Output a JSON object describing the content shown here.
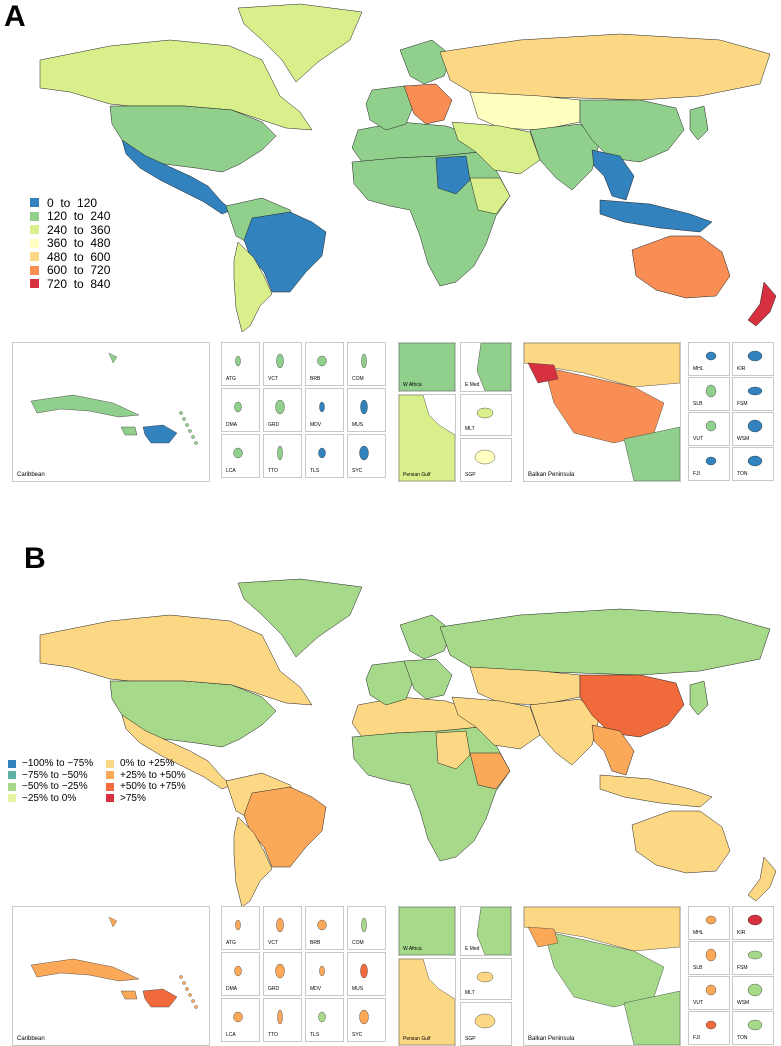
{
  "panels": [
    {
      "letter": "A",
      "legend": [
        {
          "label": "0  to  120",
          "color": "#3182bd"
        },
        {
          "label": "120  to  240",
          "color": "#91cf8c"
        },
        {
          "label": "240  to  360",
          "color": "#d9ef8b"
        },
        {
          "label": "360  to  480",
          "color": "#ffffbf"
        },
        {
          "label": "480  to  600",
          "color": "#fdd884"
        },
        {
          "label": "600  to  720",
          "color": "#f88e53"
        },
        {
          "label": "720  to  840",
          "color": "#d7303f"
        }
      ],
      "regions": {
        "north_america": "#91cf8c",
        "canada": "#d9ef8b",
        "greenland": "#d9ef8b",
        "mexico_central": "#3182bd",
        "south_america_north": "#91cf8c",
        "brazil": "#3182bd",
        "south_america_south": "#d9ef8b",
        "africa": "#91cf8c",
        "sudan": "#3182bd",
        "north_africa": "#91cf8c",
        "europe_west": "#91cf8c",
        "europe_central": "#f88e53",
        "scandinavia": "#91cf8c",
        "russia": "#fdd884",
        "central_asia": "#ffffbf",
        "middle_east": "#d9ef8b",
        "south_asia": "#91cf8c",
        "china": "#91cf8c",
        "southeast_asia": "#3182bd",
        "indonesia": "#3182bd",
        "australia": "#f88e53",
        "new_zealand": "#d7303f",
        "japan": "#91cf8c",
        "east_africa": "#d9ef8b"
      },
      "insets": {
        "caribbean": {
          "label": "Caribbean",
          "main": "#91cf8c",
          "hispaniola": "#3182bd"
        },
        "small": [
          {
            "label": "ATG",
            "color": "#91cf8c"
          },
          {
            "label": "VCT",
            "color": "#91cf8c"
          },
          {
            "label": "BRB",
            "color": "#91cf8c"
          },
          {
            "label": "COM",
            "color": "#91cf8c"
          },
          {
            "label": "DMA",
            "color": "#91cf8c"
          },
          {
            "label": "GRD",
            "color": "#91cf8c"
          },
          {
            "label": "MDV",
            "color": "#3182bd"
          },
          {
            "label": "MUS",
            "color": "#3182bd"
          },
          {
            "label": "LCA",
            "color": "#91cf8c"
          },
          {
            "label": "TTO",
            "color": "#91cf8c"
          },
          {
            "label": "TLS",
            "color": "#3182bd"
          },
          {
            "label": "SYC",
            "color": "#3182bd"
          }
        ],
        "regional": [
          {
            "label": "W Africa",
            "color": "#91cf8c"
          },
          {
            "label": "E Med",
            "color": "#91cf8c"
          },
          {
            "label": "Persian Gulf",
            "color": "#d9ef8b"
          },
          {
            "label": "MLT",
            "color": "#d9ef8b"
          },
          {
            "label": "SGP",
            "color": "#ffffbf"
          }
        ],
        "balkan": {
          "label": "Balkan Peninsula",
          "main": "#f88e53",
          "north": "#fdd884",
          "west": "#d7303f",
          "south": "#91cf8c"
        },
        "pacific": [
          {
            "label": "MHL",
            "color": "#3182bd"
          },
          {
            "label": "KIR",
            "color": "#3182bd"
          },
          {
            "label": "SLB",
            "color": "#91cf8c"
          },
          {
            "label": "FSM",
            "color": "#3182bd"
          },
          {
            "label": "VUT",
            "color": "#91cf8c"
          },
          {
            "label": "WSM",
            "color": "#3182bd"
          },
          {
            "label": "FJI",
            "color": "#3182bd"
          },
          {
            "label": "TON",
            "color": "#3182bd"
          }
        ]
      }
    },
    {
      "letter": "B",
      "legend": [
        {
          "label": "−100% to −75%",
          "color": "#3182bd"
        },
        {
          "label": "−75% to −50%",
          "color": "#5fb3a4"
        },
        {
          "label": "−50% to −25%",
          "color": "#a6d98a"
        },
        {
          "label": "−25% to 0%",
          "color": "#e6f5a0"
        },
        {
          "label": "0% to +25%",
          "color": "#fdd884"
        },
        {
          "label": "+25% to +50%",
          "color": "#fba859"
        },
        {
          "label": "+50% to +75%",
          "color": "#f06a3c"
        },
        {
          "label": ">75%",
          "color": "#d7303f"
        }
      ],
      "regions": {
        "north_america": "#a6d98a",
        "canada": "#fdd884",
        "greenland": "#a6d98a",
        "mexico_central": "#fdd884",
        "south_america_north": "#fdd884",
        "brazil": "#fba859",
        "south_america_south": "#fdd884",
        "africa": "#a6d98a",
        "sudan": "#fdd884",
        "north_africa": "#fdd884",
        "europe_west": "#a6d98a",
        "europe_central": "#a6d98a",
        "scandinavia": "#a6d98a",
        "russia": "#a6d98a",
        "central_asia": "#fdd884",
        "middle_east": "#fdd884",
        "south_asia": "#fdd884",
        "china": "#f06a3c",
        "southeast_asia": "#fba859",
        "indonesia": "#fdd884",
        "australia": "#fdd884",
        "new_zealand": "#fdd884",
        "japan": "#a6d98a",
        "east_africa": "#fba859"
      },
      "insets": {
        "caribbean": {
          "label": "Caribbean",
          "main": "#fba859",
          "hispaniola": "#f06a3c"
        },
        "small": [
          {
            "label": "ATG",
            "color": "#fba859"
          },
          {
            "label": "VCT",
            "color": "#fba859"
          },
          {
            "label": "BRB",
            "color": "#fba859"
          },
          {
            "label": "COM",
            "color": "#a6d98a"
          },
          {
            "label": "DMA",
            "color": "#fba859"
          },
          {
            "label": "GRD",
            "color": "#fba859"
          },
          {
            "label": "MDV",
            "color": "#fba859"
          },
          {
            "label": "MUS",
            "color": "#f06a3c"
          },
          {
            "label": "LCA",
            "color": "#fba859"
          },
          {
            "label": "TTO",
            "color": "#fba859"
          },
          {
            "label": "TLS",
            "color": "#a6d98a"
          },
          {
            "label": "SYC",
            "color": "#fba859"
          }
        ],
        "regional": [
          {
            "label": "W Africa",
            "color": "#a6d98a"
          },
          {
            "label": "E Med",
            "color": "#a6d98a"
          },
          {
            "label": "Persian Gulf",
            "color": "#fdd884"
          },
          {
            "label": "MLT",
            "color": "#fdd884"
          },
          {
            "label": "SGP",
            "color": "#fdd884"
          }
        ],
        "balkan": {
          "label": "Balkan Peninsula",
          "main": "#a6d98a",
          "north": "#fdd884",
          "west": "#fba859",
          "south": "#a6d98a"
        },
        "pacific": [
          {
            "label": "MHL",
            "color": "#fba859"
          },
          {
            "label": "KIR",
            "color": "#d7303f"
          },
          {
            "label": "SLB",
            "color": "#fba859"
          },
          {
            "label": "FSM",
            "color": "#a6d98a"
          },
          {
            "label": "VUT",
            "color": "#fba859"
          },
          {
            "label": "WSM",
            "color": "#a6d98a"
          },
          {
            "label": "FJI",
            "color": "#f06a3c"
          },
          {
            "label": "TON",
            "color": "#a6d98a"
          }
        ]
      }
    }
  ]
}
